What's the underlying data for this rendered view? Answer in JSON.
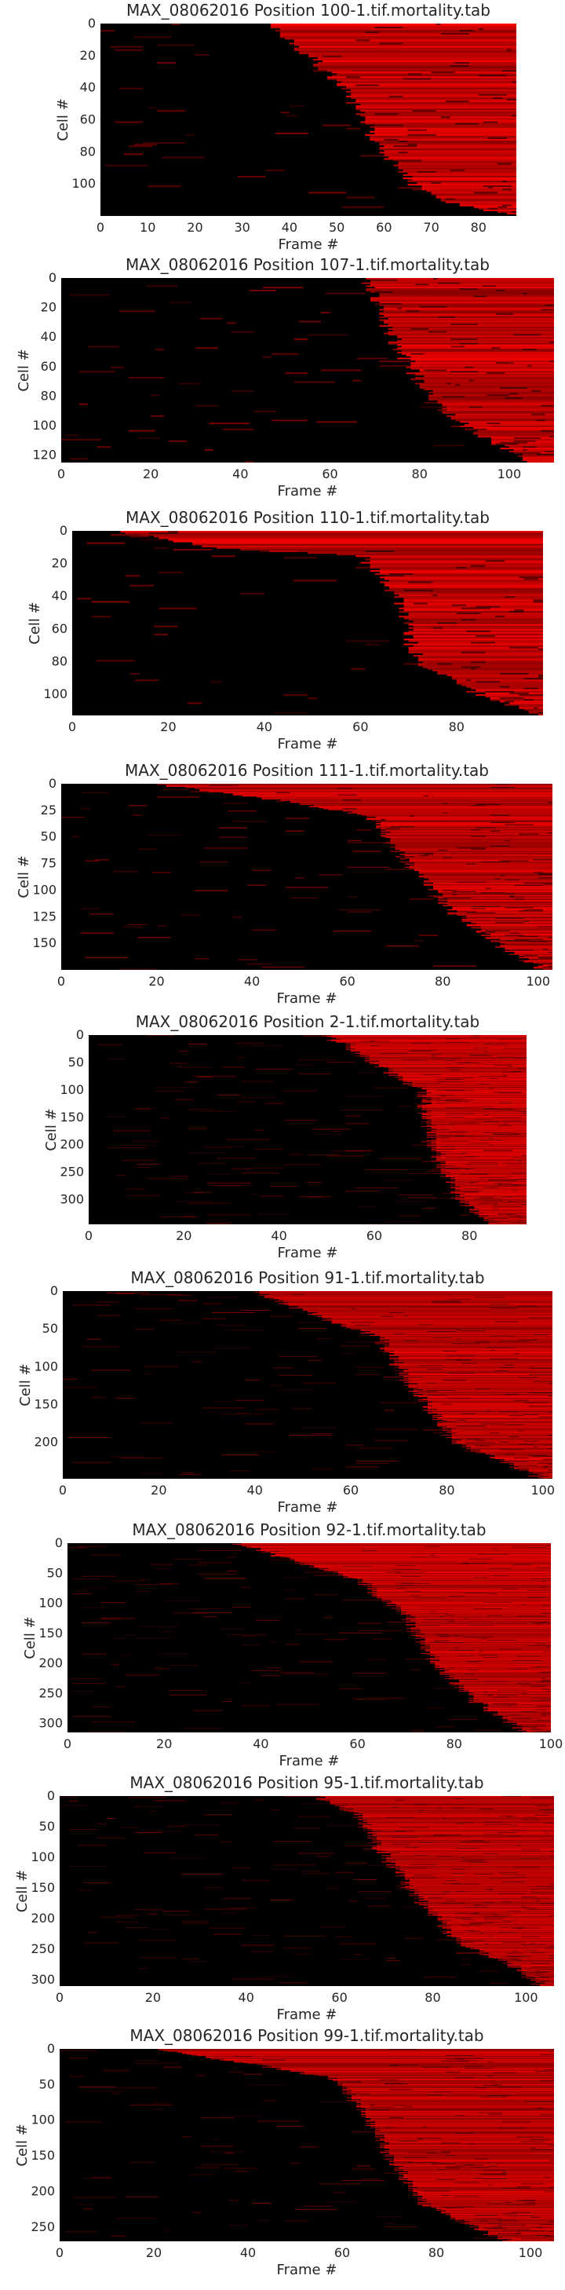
{
  "figure": {
    "panels": [
      {
        "title": "MAX_08062016 Position 100-1.tif.mortality.tab",
        "xlabel": "Frame #",
        "ylabel": "Cell #"
      },
      {
        "title": "MAX_08062016 Position 107-1.tif.mortality.tab",
        "xlabel": "Frame #",
        "ylabel": "Cell #"
      },
      {
        "title": "MAX_08062016 Position 110-1.tif.mortality.tab",
        "xlabel": "Frame #",
        "ylabel": "Cell #"
      },
      {
        "title": "MAX_08062016 Position 111-1.tif.mortality.tab",
        "xlabel": "Frame #",
        "ylabel": "Cell #"
      },
      {
        "title": "MAX_08062016 Position 2-1.tif.mortality.tab",
        "xlabel": "Frame #",
        "ylabel": "Cell #"
      },
      {
        "title": "MAX_08062016 Position 91-1.tif.mortality.tab",
        "xlabel": "Frame #",
        "ylabel": "Cell #"
      },
      {
        "title": "MAX_08062016 Position 92-1.tif.mortality.tab",
        "xlabel": "Frame #",
        "ylabel": "Cell #"
      },
      {
        "title": "MAX_08062016 Position 95-1.tif.mortality.tab",
        "xlabel": "Frame #",
        "ylabel": "Cell #"
      },
      {
        "title": "MAX_08062016 Position 99-1.tif.mortality.tab",
        "xlabel": "Frame #",
        "ylabel": "Cell #"
      }
    ]
  },
  "chart_data": [
    {
      "type": "heatmap",
      "title": "MAX_08062016 Position 100-1.tif.mortality.tab",
      "xlabel": "Frame #",
      "ylabel": "Cell #",
      "frames": 88,
      "cells": 120,
      "xlim": [
        0,
        88
      ],
      "ylim": [
        120,
        0
      ],
      "xticks": [
        0,
        10,
        20,
        30,
        40,
        50,
        60,
        70,
        80
      ],
      "yticks": [
        0,
        20,
        40,
        60,
        80,
        100
      ],
      "onset_profile": [
        [
          0,
          36
        ],
        [
          15,
          42
        ],
        [
          40,
          52
        ],
        [
          60,
          56
        ],
        [
          80,
          60
        ],
        [
          100,
          66
        ],
        [
          110,
          72
        ],
        [
          119,
          87
        ]
      ],
      "colormap": [
        "#000000",
        "#ff0000"
      ]
    },
    {
      "type": "heatmap",
      "title": "MAX_08062016 Position 107-1.tif.mortality.tab",
      "xlabel": "Frame #",
      "ylabel": "Cell #",
      "frames": 110,
      "cells": 125,
      "xlim": [
        0,
        110
      ],
      "ylim": [
        125,
        0
      ],
      "xticks": [
        0,
        20,
        40,
        60,
        80,
        100
      ],
      "yticks": [
        0,
        20,
        40,
        60,
        80,
        100,
        120
      ],
      "onset_profile": [
        [
          0,
          68
        ],
        [
          40,
          74
        ],
        [
          80,
          82
        ],
        [
          100,
          90
        ],
        [
          124,
          105
        ]
      ],
      "colormap": [
        "#000000",
        "#ff0000"
      ]
    },
    {
      "type": "heatmap",
      "title": "MAX_08062016 Position 110-1.tif.mortality.tab",
      "xlabel": "Frame #",
      "ylabel": "Cell #",
      "frames": 98,
      "cells": 113,
      "xlim": [
        0,
        98
      ],
      "ylim": [
        113,
        0
      ],
      "xticks": [
        0,
        20,
        40,
        60,
        80
      ],
      "yticks": [
        0,
        20,
        40,
        60,
        80,
        100
      ],
      "onset_profile": [
        [
          0,
          10
        ],
        [
          10,
          30
        ],
        [
          15,
          60
        ],
        [
          40,
          68
        ],
        [
          80,
          72
        ],
        [
          100,
          85
        ],
        [
          112,
          96
        ]
      ],
      "colormap": [
        "#000000",
        "#ff0000"
      ]
    },
    {
      "type": "heatmap",
      "title": "MAX_08062016 Position 111-1.tif.mortality.tab",
      "xlabel": "Frame #",
      "ylabel": "Cell #",
      "frames": 103,
      "cells": 175,
      "xlim": [
        0,
        103
      ],
      "ylim": [
        175,
        0
      ],
      "xticks": [
        0,
        20,
        40,
        60,
        80,
        100
      ],
      "yticks": [
        0,
        25,
        50,
        75,
        100,
        125,
        150
      ],
      "onset_profile": [
        [
          0,
          20
        ],
        [
          15,
          45
        ],
        [
          30,
          65
        ],
        [
          60,
          70
        ],
        [
          120,
          82
        ],
        [
          160,
          95
        ],
        [
          174,
          101
        ]
      ],
      "colormap": [
        "#000000",
        "#ff0000"
      ]
    },
    {
      "type": "heatmap",
      "title": "MAX_08062016 Position 2-1.tif.mortality.tab",
      "xlabel": "Frame #",
      "ylabel": "Cell #",
      "frames": 92,
      "cells": 345,
      "xlim": [
        0,
        92
      ],
      "ylim": [
        345,
        0
      ],
      "xticks": [
        0,
        20,
        40,
        60,
        80
      ],
      "yticks": [
        0,
        50,
        100,
        150,
        200,
        250,
        300
      ],
      "onset_profile": [
        [
          0,
          50
        ],
        [
          60,
          62
        ],
        [
          100,
          70
        ],
        [
          200,
          72
        ],
        [
          300,
          78
        ],
        [
          344,
          85
        ]
      ],
      "colormap": [
        "#000000",
        "#ff0000"
      ]
    },
    {
      "type": "heatmap",
      "title": "MAX_08062016 Position 91-1.tif.mortality.tab",
      "xlabel": "Frame #",
      "ylabel": "Cell #",
      "frames": 102,
      "cells": 248,
      "xlim": [
        0,
        102
      ],
      "ylim": [
        248,
        0
      ],
      "xticks": [
        0,
        20,
        40,
        60,
        80,
        100
      ],
      "yticks": [
        0,
        50,
        100,
        150,
        200
      ],
      "onset_profile": [
        [
          0,
          40
        ],
        [
          40,
          56
        ],
        [
          60,
          66
        ],
        [
          120,
          72
        ],
        [
          200,
          82
        ],
        [
          230,
          94
        ],
        [
          247,
          100
        ]
      ],
      "colormap": [
        "#000000",
        "#ff0000"
      ]
    },
    {
      "type": "heatmap",
      "title": "MAX_08062016 Position 92-1.tif.mortality.tab",
      "xlabel": "Frame #",
      "ylabel": "Cell #",
      "frames": 100,
      "cells": 315,
      "xlim": [
        0,
        100
      ],
      "ylim": [
        315,
        0
      ],
      "xticks": [
        0,
        20,
        40,
        60,
        80,
        100
      ],
      "yticks": [
        0,
        50,
        100,
        150,
        200,
        250,
        300
      ],
      "onset_profile": [
        [
          0,
          35
        ],
        [
          60,
          60
        ],
        [
          120,
          70
        ],
        [
          200,
          76
        ],
        [
          260,
          84
        ],
        [
          314,
          95
        ]
      ],
      "colormap": [
        "#000000",
        "#ff0000"
      ]
    },
    {
      "type": "heatmap",
      "title": "MAX_08062016 Position 95-1.tif.mortality.tab",
      "xlabel": "Frame #",
      "ylabel": "Cell #",
      "frames": 106,
      "cells": 310,
      "xlim": [
        0,
        106
      ],
      "ylim": [
        310,
        0
      ],
      "xticks": [
        0,
        20,
        40,
        60,
        80,
        100
      ],
      "yticks": [
        0,
        50,
        100,
        150,
        200,
        250,
        300
      ],
      "onset_profile": [
        [
          0,
          55
        ],
        [
          30,
          64
        ],
        [
          80,
          68
        ],
        [
          160,
          76
        ],
        [
          240,
          86
        ],
        [
          280,
          98
        ],
        [
          309,
          103
        ]
      ],
      "colormap": [
        "#000000",
        "#ff0000"
      ]
    },
    {
      "type": "heatmap",
      "title": "MAX_08062016 Position 99-1.tif.mortality.tab",
      "xlabel": "Frame #",
      "ylabel": "Cell #",
      "frames": 105,
      "cells": 270,
      "xlim": [
        0,
        105
      ],
      "ylim": [
        270,
        0
      ],
      "xticks": [
        0,
        20,
        40,
        60,
        80,
        100
      ],
      "yticks": [
        0,
        50,
        100,
        150,
        200,
        250
      ],
      "onset_profile": [
        [
          0,
          20
        ],
        [
          20,
          40
        ],
        [
          40,
          58
        ],
        [
          80,
          64
        ],
        [
          150,
          70
        ],
        [
          220,
          78
        ],
        [
          269,
          95
        ]
      ],
      "colormap": [
        "#000000",
        "#ff0000"
      ]
    }
  ]
}
